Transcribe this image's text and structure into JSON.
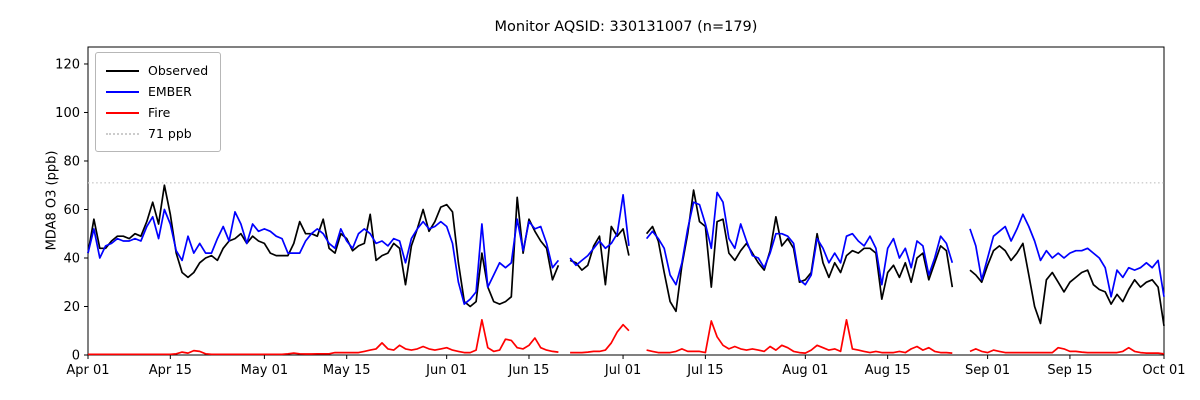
{
  "window": {
    "kind": "matplotlib-figure"
  },
  "chart_data": {
    "type": "line",
    "title": "Monitor AQSID: 330131007 (n=179)",
    "xlabel": "",
    "ylabel": "MDA8 O3 (ppb)",
    "ylim": [
      0,
      127
    ],
    "yticks": [
      0,
      20,
      40,
      60,
      80,
      100,
      120
    ],
    "n_days": 184,
    "x_start": "Apr 01",
    "x_end": "Oct 01",
    "xtick_days": [
      0,
      14,
      30,
      44,
      61,
      75,
      91,
      105,
      122,
      136,
      153,
      167,
      183
    ],
    "xtick_labels": [
      "Apr 01",
      "Apr 15",
      "May 01",
      "May 15",
      "Jun 01",
      "Jun 15",
      "Jul 01",
      "Jul 15",
      "Aug 01",
      "Aug 15",
      "Sep 01",
      "Sep 15",
      "Oct 01"
    ],
    "legend_position": "upper left",
    "grid": false,
    "reference_line": {
      "label": "71 ppb",
      "value": 71,
      "style": "dotted",
      "color": "#cccccc"
    },
    "series": [
      {
        "name": "Observed",
        "color": "#000000",
        "values": [
          42,
          56,
          44,
          44,
          47,
          49,
          49,
          48,
          50,
          49,
          55,
          63,
          54,
          70,
          58,
          42,
          34,
          32,
          34,
          38,
          40,
          41,
          39,
          44,
          47,
          48,
          50,
          46,
          49,
          47,
          46,
          42,
          41,
          41,
          41,
          46,
          55,
          50,
          50,
          49,
          56,
          44,
          42,
          50,
          48,
          43,
          45,
          46,
          58,
          39,
          41,
          42,
          46,
          44,
          29,
          45,
          52,
          60,
          51,
          55,
          61,
          62,
          59,
          38,
          22,
          20,
          22,
          42,
          28,
          22,
          21,
          22,
          24,
          65,
          42,
          56,
          51,
          47,
          44,
          31,
          37,
          null,
          39,
          38,
          35,
          37,
          45,
          49,
          29,
          53,
          49,
          52,
          41,
          null,
          null,
          50,
          53,
          47,
          34,
          22,
          18,
          37,
          50,
          68,
          55,
          53,
          28,
          55,
          56,
          42,
          39,
          43,
          46,
          42,
          38,
          35,
          43,
          57,
          45,
          48,
          44,
          30,
          31,
          34,
          50,
          38,
          32,
          38,
          34,
          41,
          43,
          42,
          44,
          44,
          42,
          23,
          34,
          37,
          32,
          38,
          30,
          40,
          42,
          31,
          38,
          45,
          43,
          28,
          null,
          null,
          35,
          33,
          30,
          37,
          43,
          45,
          43,
          39,
          42,
          46,
          33,
          20,
          13,
          31,
          34,
          30,
          26,
          30,
          32,
          34,
          35,
          29,
          27,
          26,
          21,
          25,
          22,
          27,
          31,
          28,
          30,
          31,
          28,
          12
        ]
      },
      {
        "name": "EMBER",
        "color": "#0000ff",
        "values": [
          42,
          52,
          40,
          45,
          46,
          48,
          47,
          47,
          48,
          47,
          53,
          57,
          48,
          60,
          54,
          43,
          39,
          49,
          42,
          46,
          42,
          42,
          48,
          53,
          47,
          59,
          54,
          46,
          54,
          51,
          52,
          51,
          49,
          48,
          42,
          42,
          42,
          47,
          50,
          52,
          50,
          46,
          44,
          52,
          47,
          44,
          50,
          52,
          50,
          46,
          47,
          45,
          48,
          47,
          38,
          48,
          52,
          55,
          52,
          53,
          55,
          53,
          46,
          30,
          21,
          23,
          26,
          54,
          28,
          33,
          38,
          36,
          38,
          56,
          43,
          55,
          52,
          53,
          46,
          36,
          39,
          null,
          40,
          37,
          39,
          41,
          44,
          47,
          44,
          46,
          50,
          66,
          45,
          null,
          null,
          48,
          51,
          48,
          44,
          33,
          29,
          38,
          52,
          63,
          62,
          54,
          44,
          67,
          63,
          48,
          44,
          54,
          47,
          41,
          40,
          36,
          42,
          50,
          50,
          49,
          46,
          31,
          29,
          33,
          48,
          44,
          38,
          42,
          38,
          49,
          50,
          47,
          45,
          49,
          44,
          29,
          44,
          48,
          40,
          44,
          36,
          47,
          45,
          33,
          40,
          49,
          46,
          38,
          null,
          null,
          52,
          45,
          31,
          40,
          49,
          51,
          53,
          47,
          52,
          58,
          53,
          47,
          39,
          43,
          40,
          42,
          40,
          42,
          43,
          43,
          44,
          42,
          40,
          36,
          24,
          35,
          32,
          36,
          35,
          36,
          38,
          36,
          39,
          24
        ]
      },
      {
        "name": "Fire",
        "color": "#ff0000",
        "values": [
          0.3,
          0.3,
          0.3,
          0.3,
          0.3,
          0.3,
          0.3,
          0.3,
          0.3,
          0.3,
          0.3,
          0.3,
          0.3,
          0.3,
          0.3,
          0.5,
          1.2,
          0.8,
          1.8,
          1.5,
          0.5,
          0.3,
          0.3,
          0.3,
          0.3,
          0.3,
          0.3,
          0.3,
          0.3,
          0.3,
          0.3,
          0.3,
          0.3,
          0.3,
          0.5,
          0.8,
          0.5,
          0.4,
          0.4,
          0.5,
          0.5,
          0.5,
          1,
          1,
          1,
          1,
          1,
          1.5,
          2,
          2.5,
          5,
          2.5,
          2,
          4,
          2.5,
          2,
          2.5,
          3.5,
          2.5,
          2,
          2.5,
          3,
          2,
          1.5,
          1,
          1,
          2,
          14.5,
          3,
          1.5,
          2,
          6.5,
          6,
          3,
          2.5,
          4,
          7,
          3,
          2,
          1.5,
          1.2,
          null,
          1,
          1,
          1,
          1.2,
          1.5,
          1.5,
          2,
          5,
          9.5,
          12.5,
          10,
          null,
          null,
          2,
          1.5,
          1,
          1,
          1,
          1.5,
          2.5,
          1.5,
          1.5,
          1.5,
          1,
          14,
          7.5,
          4,
          2.5,
          3.5,
          2.5,
          2,
          2.5,
          2,
          1.5,
          3.5,
          2,
          4,
          3,
          1.5,
          1,
          0.8,
          2,
          4,
          3,
          2,
          2.5,
          1.5,
          14.5,
          2.5,
          2,
          1.5,
          1,
          1.5,
          1,
          1,
          1,
          1.5,
          1,
          2.5,
          3.5,
          2,
          3,
          1.5,
          1,
          1,
          0.8,
          null,
          null,
          1.5,
          2.5,
          1.5,
          1,
          2,
          1.5,
          1,
          1,
          1,
          1,
          1,
          1,
          1,
          1,
          1,
          3,
          2.5,
          1.5,
          1.5,
          1.2,
          1,
          1,
          1,
          1,
          1,
          1,
          1.5,
          3,
          1.5,
          1,
          0.8,
          0.8,
          0.8,
          0.5
        ]
      }
    ]
  }
}
